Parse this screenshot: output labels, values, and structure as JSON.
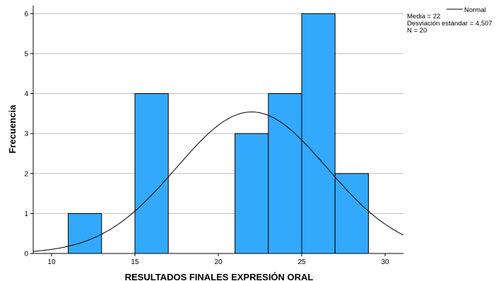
{
  "chart_data": {
    "type": "bar",
    "subtype": "histogram",
    "xlabel": "RESULTADOS FINALES EXPRESIÓN ORAL",
    "ylabel": "Frecuencia",
    "xlim": [
      8.9,
      31.1
    ],
    "ylim": [
      0,
      6.2
    ],
    "xticks": [
      10,
      15,
      20,
      25,
      30
    ],
    "yticks": [
      0,
      1,
      2,
      3,
      4,
      5,
      6
    ],
    "bins": [
      {
        "x0": 11,
        "x1": 13,
        "value": 1
      },
      {
        "x0": 15,
        "x1": 17,
        "value": 4
      },
      {
        "x0": 21,
        "x1": 23,
        "value": 3
      },
      {
        "x0": 23,
        "x1": 25,
        "value": 4
      },
      {
        "x0": 25,
        "x1": 27,
        "value": 6
      },
      {
        "x0": 27,
        "x1": 29,
        "value": 2
      }
    ],
    "normal_curve": {
      "mean": 22,
      "sd": 4.507,
      "n": 20,
      "bin_width": 2
    },
    "grid": "horizontal",
    "legend": {
      "placement": "top-right",
      "series_label": "Normal",
      "stats": [
        "Media = 22",
        "Desviación estándar = 4,507",
        "N = 20"
      ]
    },
    "colors": {
      "bar": "#33a9fd",
      "bar_edge": "#000000",
      "curve": "#000000",
      "grid": "#bcbcbc"
    }
  }
}
